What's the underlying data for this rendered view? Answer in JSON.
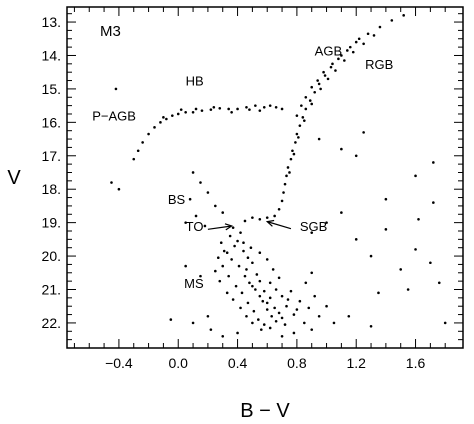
{
  "chart_data": {
    "type": "scatter",
    "title": "M3",
    "xlabel": "B − V",
    "ylabel": "V",
    "xlim": [
      -0.75,
      1.92
    ],
    "ylim": [
      22.75,
      12.55
    ],
    "y_inverted": true,
    "grid": false,
    "legend": "none",
    "x_ticks": [
      {
        "value": -0.4,
        "label": "−0.4"
      },
      {
        "value": 0.0,
        "label": "0.0"
      },
      {
        "value": 0.4,
        "label": "0.4"
      },
      {
        "value": 0.8,
        "label": "0.8"
      },
      {
        "value": 1.2,
        "label": "1.2"
      },
      {
        "value": 1.6,
        "label": "1.6"
      }
    ],
    "y_ticks": [
      {
        "value": 13,
        "label": "13."
      },
      {
        "value": 14,
        "label": "14."
      },
      {
        "value": 15,
        "label": "15."
      },
      {
        "value": 16,
        "label": "16."
      },
      {
        "value": 17,
        "label": "17."
      },
      {
        "value": 18,
        "label": "18."
      },
      {
        "value": 19,
        "label": "19."
      },
      {
        "value": 20,
        "label": "20."
      },
      {
        "value": 21,
        "label": "21."
      },
      {
        "value": 22,
        "label": "22."
      }
    ],
    "annotations": [
      {
        "text": "AGB",
        "x": 0.92,
        "y": 14.0
      },
      {
        "text": "RGB",
        "x": 1.26,
        "y": 14.4
      },
      {
        "text": "HB",
        "x": 0.05,
        "y": 14.9
      },
      {
        "text": "P−AGB",
        "x": -0.58,
        "y": 15.95
      },
      {
        "text": "BS",
        "x": -0.07,
        "y": 18.45
      },
      {
        "text": "TO",
        "x": 0.05,
        "y": 19.25
      },
      {
        "text": "SGB",
        "x": 0.82,
        "y": 19.25
      },
      {
        "text": "MS",
        "x": 0.04,
        "y": 20.95
      }
    ],
    "arrows": [
      {
        "from": [
          0.2,
          19.2
        ],
        "to": [
          0.36,
          19.1
        ]
      },
      {
        "from": [
          0.76,
          19.18
        ],
        "to": [
          0.6,
          18.97
        ]
      }
    ],
    "series": [
      {
        "marker": "dot",
        "color": "#000000",
        "points": [
          [
            0.35,
            19.4
          ],
          [
            0.4,
            19.55
          ],
          [
            0.38,
            19.7
          ],
          [
            0.44,
            19.85
          ],
          [
            0.42,
            19.3
          ],
          [
            0.37,
            19.15
          ],
          [
            0.47,
            20.05
          ],
          [
            0.5,
            20.2
          ],
          [
            0.46,
            20.4
          ],
          [
            0.53,
            20.55
          ],
          [
            0.55,
            20.75
          ],
          [
            0.5,
            20.9
          ],
          [
            0.58,
            21.05
          ],
          [
            0.62,
            21.25
          ],
          [
            0.6,
            21.4
          ],
          [
            0.65,
            21.55
          ],
          [
            0.68,
            21.7
          ],
          [
            0.7,
            21.85
          ],
          [
            0.33,
            19.9
          ],
          [
            0.36,
            20.1
          ],
          [
            0.41,
            20.3
          ],
          [
            0.45,
            20.6
          ],
          [
            0.48,
            20.8
          ],
          [
            0.52,
            21.0
          ],
          [
            0.55,
            21.2
          ],
          [
            0.57,
            21.35
          ],
          [
            0.6,
            21.6
          ],
          [
            0.63,
            21.8
          ],
          [
            0.66,
            21.95
          ],
          [
            0.72,
            22.05
          ],
          [
            0.3,
            20.3
          ],
          [
            0.34,
            20.6
          ],
          [
            0.39,
            20.9
          ],
          [
            0.43,
            21.1
          ],
          [
            0.47,
            21.4
          ],
          [
            0.51,
            21.65
          ],
          [
            0.54,
            21.9
          ],
          [
            0.58,
            22.05
          ],
          [
            0.74,
            21.3
          ],
          [
            0.76,
            21.05
          ],
          [
            0.8,
            21.6
          ],
          [
            0.85,
            22.0
          ],
          [
            0.62,
            20.8
          ],
          [
            0.66,
            21.0
          ],
          [
            0.7,
            21.2
          ],
          [
            0.73,
            21.5
          ],
          [
            0.78,
            21.75
          ],
          [
            0.44,
            19.6
          ],
          [
            0.49,
            19.75
          ],
          [
            0.55,
            19.9
          ],
          [
            0.6,
            20.1
          ],
          [
            0.64,
            20.4
          ],
          [
            0.68,
            20.65
          ],
          [
            0.29,
            19.6
          ],
          [
            0.31,
            19.85
          ],
          [
            0.27,
            20.05
          ],
          [
            0.25,
            20.45
          ],
          [
            0.28,
            20.75
          ],
          [
            0.33,
            21.1
          ],
          [
            0.37,
            21.3
          ],
          [
            0.42,
            21.55
          ],
          [
            0.46,
            21.8
          ],
          [
            0.5,
            22.0
          ],
          [
            0.56,
            22.2
          ],
          [
            0.62,
            22.15
          ],
          [
            0.82,
            21.35
          ],
          [
            0.88,
            21.55
          ],
          [
            0.92,
            21.2
          ],
          [
            0.86,
            20.8
          ],
          [
            0.9,
            20.5
          ],
          [
            0.95,
            21.8
          ],
          [
            1.0,
            21.5
          ],
          [
            0.45,
            18.95
          ],
          [
            0.5,
            18.85
          ],
          [
            0.55,
            18.9
          ],
          [
            0.6,
            18.85
          ],
          [
            0.65,
            18.8
          ],
          [
            0.68,
            18.6
          ],
          [
            0.7,
            18.35
          ],
          [
            0.71,
            18.1
          ],
          [
            0.72,
            17.85
          ],
          [
            0.73,
            17.6
          ],
          [
            0.74,
            17.35
          ],
          [
            0.76,
            17.1
          ],
          [
            0.77,
            16.85
          ],
          [
            0.79,
            16.6
          ],
          [
            0.8,
            16.35
          ],
          [
            0.82,
            16.1
          ],
          [
            0.84,
            15.85
          ],
          [
            0.86,
            15.6
          ],
          [
            0.89,
            15.35
          ],
          [
            0.92,
            15.1
          ],
          [
            0.95,
            14.85
          ],
          [
            0.99,
            14.6
          ],
          [
            1.03,
            14.35
          ],
          [
            1.08,
            14.1
          ],
          [
            1.14,
            13.85
          ],
          [
            1.2,
            13.6
          ],
          [
            1.28,
            13.35
          ],
          [
            1.36,
            13.15
          ],
          [
            1.44,
            12.95
          ],
          [
            1.52,
            12.8
          ],
          [
            0.75,
            17.5
          ],
          [
            0.78,
            16.95
          ],
          [
            0.81,
            16.45
          ],
          [
            0.85,
            15.95
          ],
          [
            0.9,
            15.45
          ],
          [
            0.96,
            15.0
          ],
          [
            1.01,
            14.7
          ],
          [
            1.06,
            14.45
          ],
          [
            1.12,
            14.15
          ],
          [
            1.18,
            13.9
          ],
          [
            1.25,
            13.65
          ],
          [
            1.32,
            13.4
          ],
          [
            0.8,
            15.8
          ],
          [
            0.83,
            15.5
          ],
          [
            0.86,
            15.25
          ],
          [
            0.9,
            14.95
          ],
          [
            0.94,
            14.75
          ],
          [
            0.98,
            14.5
          ],
          [
            1.04,
            14.25
          ],
          [
            1.1,
            14.0
          ],
          [
            1.16,
            13.75
          ],
          [
            1.22,
            13.5
          ],
          [
            0.58,
            15.55
          ],
          [
            0.52,
            15.5
          ],
          [
            0.46,
            15.55
          ],
          [
            0.4,
            15.6
          ],
          [
            0.34,
            15.6
          ],
          [
            0.28,
            15.58
          ],
          [
            0.22,
            15.62
          ],
          [
            0.16,
            15.65
          ],
          [
            0.1,
            15.7
          ],
          [
            0.05,
            15.7
          ],
          [
            0.0,
            15.75
          ],
          [
            -0.04,
            15.8
          ],
          [
            -0.08,
            15.9
          ],
          [
            -0.12,
            16.0
          ],
          [
            -0.16,
            16.15
          ],
          [
            -0.2,
            16.35
          ],
          [
            -0.24,
            16.6
          ],
          [
            -0.27,
            16.85
          ],
          [
            -0.3,
            17.1
          ],
          [
            0.62,
            15.5
          ],
          [
            0.66,
            15.55
          ],
          [
            0.7,
            15.6
          ],
          [
            0.55,
            15.65
          ],
          [
            0.48,
            15.62
          ],
          [
            0.36,
            15.7
          ],
          [
            0.24,
            15.55
          ],
          [
            0.12,
            15.6
          ],
          [
            0.02,
            15.62
          ],
          [
            -0.1,
            15.85
          ],
          [
            -0.42,
            15.0
          ],
          [
            -0.45,
            17.8
          ],
          [
            -0.4,
            18.0
          ],
          [
            0.1,
            17.5
          ],
          [
            0.15,
            17.8
          ],
          [
            0.2,
            18.1
          ],
          [
            0.08,
            18.3
          ],
          [
            0.25,
            18.5
          ],
          [
            0.12,
            18.8
          ],
          [
            0.05,
            19.0
          ],
          [
            0.3,
            18.7
          ],
          [
            0.18,
            19.1
          ],
          [
            0.9,
            19.3
          ],
          [
            1.0,
            19.0
          ],
          [
            1.1,
            18.7
          ],
          [
            1.2,
            19.5
          ],
          [
            1.3,
            20.0
          ],
          [
            1.4,
            19.2
          ],
          [
            1.5,
            20.4
          ],
          [
            1.6,
            19.8
          ],
          [
            1.7,
            20.2
          ],
          [
            1.76,
            20.8
          ],
          [
            1.8,
            22.0
          ],
          [
            1.72,
            18.4
          ],
          [
            1.4,
            18.3
          ],
          [
            1.2,
            17.0
          ],
          [
            1.6,
            17.6
          ],
          [
            1.72,
            17.2
          ],
          [
            1.25,
            16.3
          ],
          [
            1.1,
            16.8
          ],
          [
            0.95,
            16.5
          ],
          [
            1.35,
            21.1
          ],
          [
            1.15,
            21.8
          ],
          [
            1.05,
            22.0
          ],
          [
            0.9,
            22.2
          ],
          [
            0.78,
            22.3
          ],
          [
            0.2,
            21.8
          ],
          [
            0.1,
            22.0
          ],
          [
            0.15,
            20.6
          ],
          [
            0.05,
            20.3
          ],
          [
            -0.05,
            21.9
          ],
          [
            0.22,
            22.2
          ],
          [
            0.3,
            22.4
          ],
          [
            0.4,
            22.3
          ],
          [
            0.7,
            22.4
          ],
          [
            1.3,
            22.1
          ],
          [
            1.55,
            21.0
          ],
          [
            1.62,
            18.9
          ]
        ]
      }
    ]
  }
}
